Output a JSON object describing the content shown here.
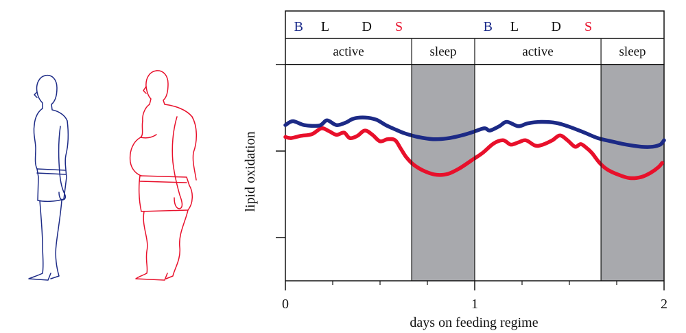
{
  "chart_data": {
    "type": "line",
    "title": "",
    "xlabel": "days on feeding regime",
    "ylabel": "lipid oxidation",
    "xlim": [
      0,
      2
    ],
    "x_ticks": [
      0,
      1,
      2
    ],
    "x_tick_labels": [
      "0",
      "1",
      "2"
    ],
    "minor_x_ticks": [
      0.25,
      0.5,
      0.75,
      1.25,
      1.5,
      1.75
    ],
    "ylim": [
      0,
      10
    ],
    "y_ticks": [
      2,
      6,
      10
    ],
    "meals": [
      {
        "letter": "B",
        "day": 0.07,
        "color": "#1a2a8a"
      },
      {
        "letter": "L",
        "day": 0.21,
        "color": "#111111"
      },
      {
        "letter": "D",
        "day": 0.43,
        "color": "#111111"
      },
      {
        "letter": "S",
        "day": 0.6,
        "color": "#e8102b"
      },
      {
        "letter": "B",
        "day": 1.07,
        "color": "#1a2a8a"
      },
      {
        "letter": "L",
        "day": 1.21,
        "color": "#111111"
      },
      {
        "letter": "D",
        "day": 1.43,
        "color": "#111111"
      },
      {
        "letter": "S",
        "day": 1.6,
        "color": "#e8102b"
      }
    ],
    "periods": [
      {
        "label": "active",
        "start": 0.0,
        "end": 0.667,
        "shaded": false
      },
      {
        "label": "sleep",
        "start": 0.667,
        "end": 1.0,
        "shaded": true
      },
      {
        "label": "active",
        "start": 1.0,
        "end": 1.667,
        "shaded": false
      },
      {
        "label": "sleep",
        "start": 1.667,
        "end": 2.0,
        "shaded": true
      }
    ],
    "shade_color": "#a8a9ad",
    "series": [
      {
        "name": "lean",
        "color": "#1c2a86",
        "x": [
          0.0,
          0.04,
          0.1,
          0.18,
          0.22,
          0.27,
          0.32,
          0.36,
          0.42,
          0.48,
          0.53,
          0.58,
          0.63,
          0.7,
          0.78,
          0.85,
          0.92,
          0.98,
          1.05,
          1.08,
          1.13,
          1.17,
          1.23,
          1.28,
          1.35,
          1.43,
          1.5,
          1.58,
          1.65,
          1.72,
          1.8,
          1.88,
          1.94,
          1.98,
          2.0
        ],
        "values": [
          7.2,
          7.38,
          7.2,
          7.18,
          7.42,
          7.2,
          7.32,
          7.5,
          7.55,
          7.45,
          7.2,
          7.0,
          6.82,
          6.65,
          6.55,
          6.58,
          6.7,
          6.85,
          7.05,
          6.95,
          7.15,
          7.35,
          7.15,
          7.28,
          7.35,
          7.3,
          7.12,
          6.85,
          6.6,
          6.45,
          6.3,
          6.2,
          6.2,
          6.3,
          6.5
        ]
      },
      {
        "name": "obese",
        "color": "#e8102b",
        "x": [
          0.0,
          0.03,
          0.08,
          0.14,
          0.19,
          0.23,
          0.27,
          0.31,
          0.34,
          0.38,
          0.42,
          0.46,
          0.5,
          0.54,
          0.58,
          0.61,
          0.64,
          0.68,
          0.74,
          0.8,
          0.86,
          0.92,
          0.98,
          1.04,
          1.1,
          1.15,
          1.19,
          1.23,
          1.27,
          1.32,
          1.36,
          1.41,
          1.45,
          1.49,
          1.53,
          1.56,
          1.59,
          1.62,
          1.66,
          1.7,
          1.76,
          1.82,
          1.88,
          1.93,
          1.97,
          1.99
        ],
        "values": [
          6.65,
          6.6,
          6.7,
          6.78,
          7.05,
          6.92,
          6.75,
          6.85,
          6.6,
          6.7,
          6.95,
          6.75,
          6.45,
          6.55,
          6.5,
          6.1,
          5.7,
          5.35,
          5.05,
          4.9,
          4.95,
          5.2,
          5.55,
          5.9,
          6.35,
          6.5,
          6.3,
          6.4,
          6.5,
          6.25,
          6.3,
          6.5,
          6.72,
          6.5,
          6.2,
          6.32,
          6.15,
          5.9,
          5.45,
          5.15,
          4.9,
          4.75,
          4.8,
          5.0,
          5.25,
          5.45
        ]
      }
    ]
  },
  "figures": {
    "lean_color": "#1c2a86",
    "obese_color": "#e8102b"
  }
}
